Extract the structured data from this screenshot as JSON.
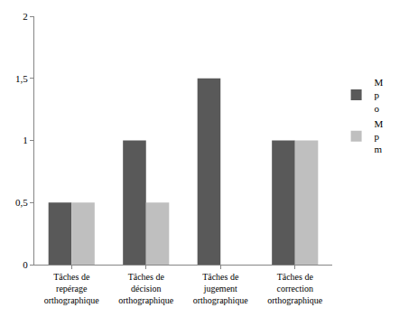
{
  "chart_data": {
    "type": "bar",
    "categories": [
      "Tâches de\nrepérage\northographique",
      "Tâches de\ndécision\northographique",
      "Tâches de\njugement\northographique",
      "Tâches de\ncorrection\northographique"
    ],
    "series": [
      {
        "name": "M\np\no",
        "color": "#595959",
        "values": [
          0.5,
          1,
          1.5,
          1
        ]
      },
      {
        "name": "M\np\nm",
        "color": "#bfbfbf",
        "values": [
          0.5,
          0.5,
          0,
          1
        ]
      }
    ],
    "ylim": [
      0,
      2
    ],
    "yticks": [
      0,
      {
        "value": 0.5,
        "label": "0,5"
      },
      1,
      {
        "value": 1.5,
        "label": "1,5"
      },
      2
    ],
    "grid": false,
    "legend": "right"
  }
}
